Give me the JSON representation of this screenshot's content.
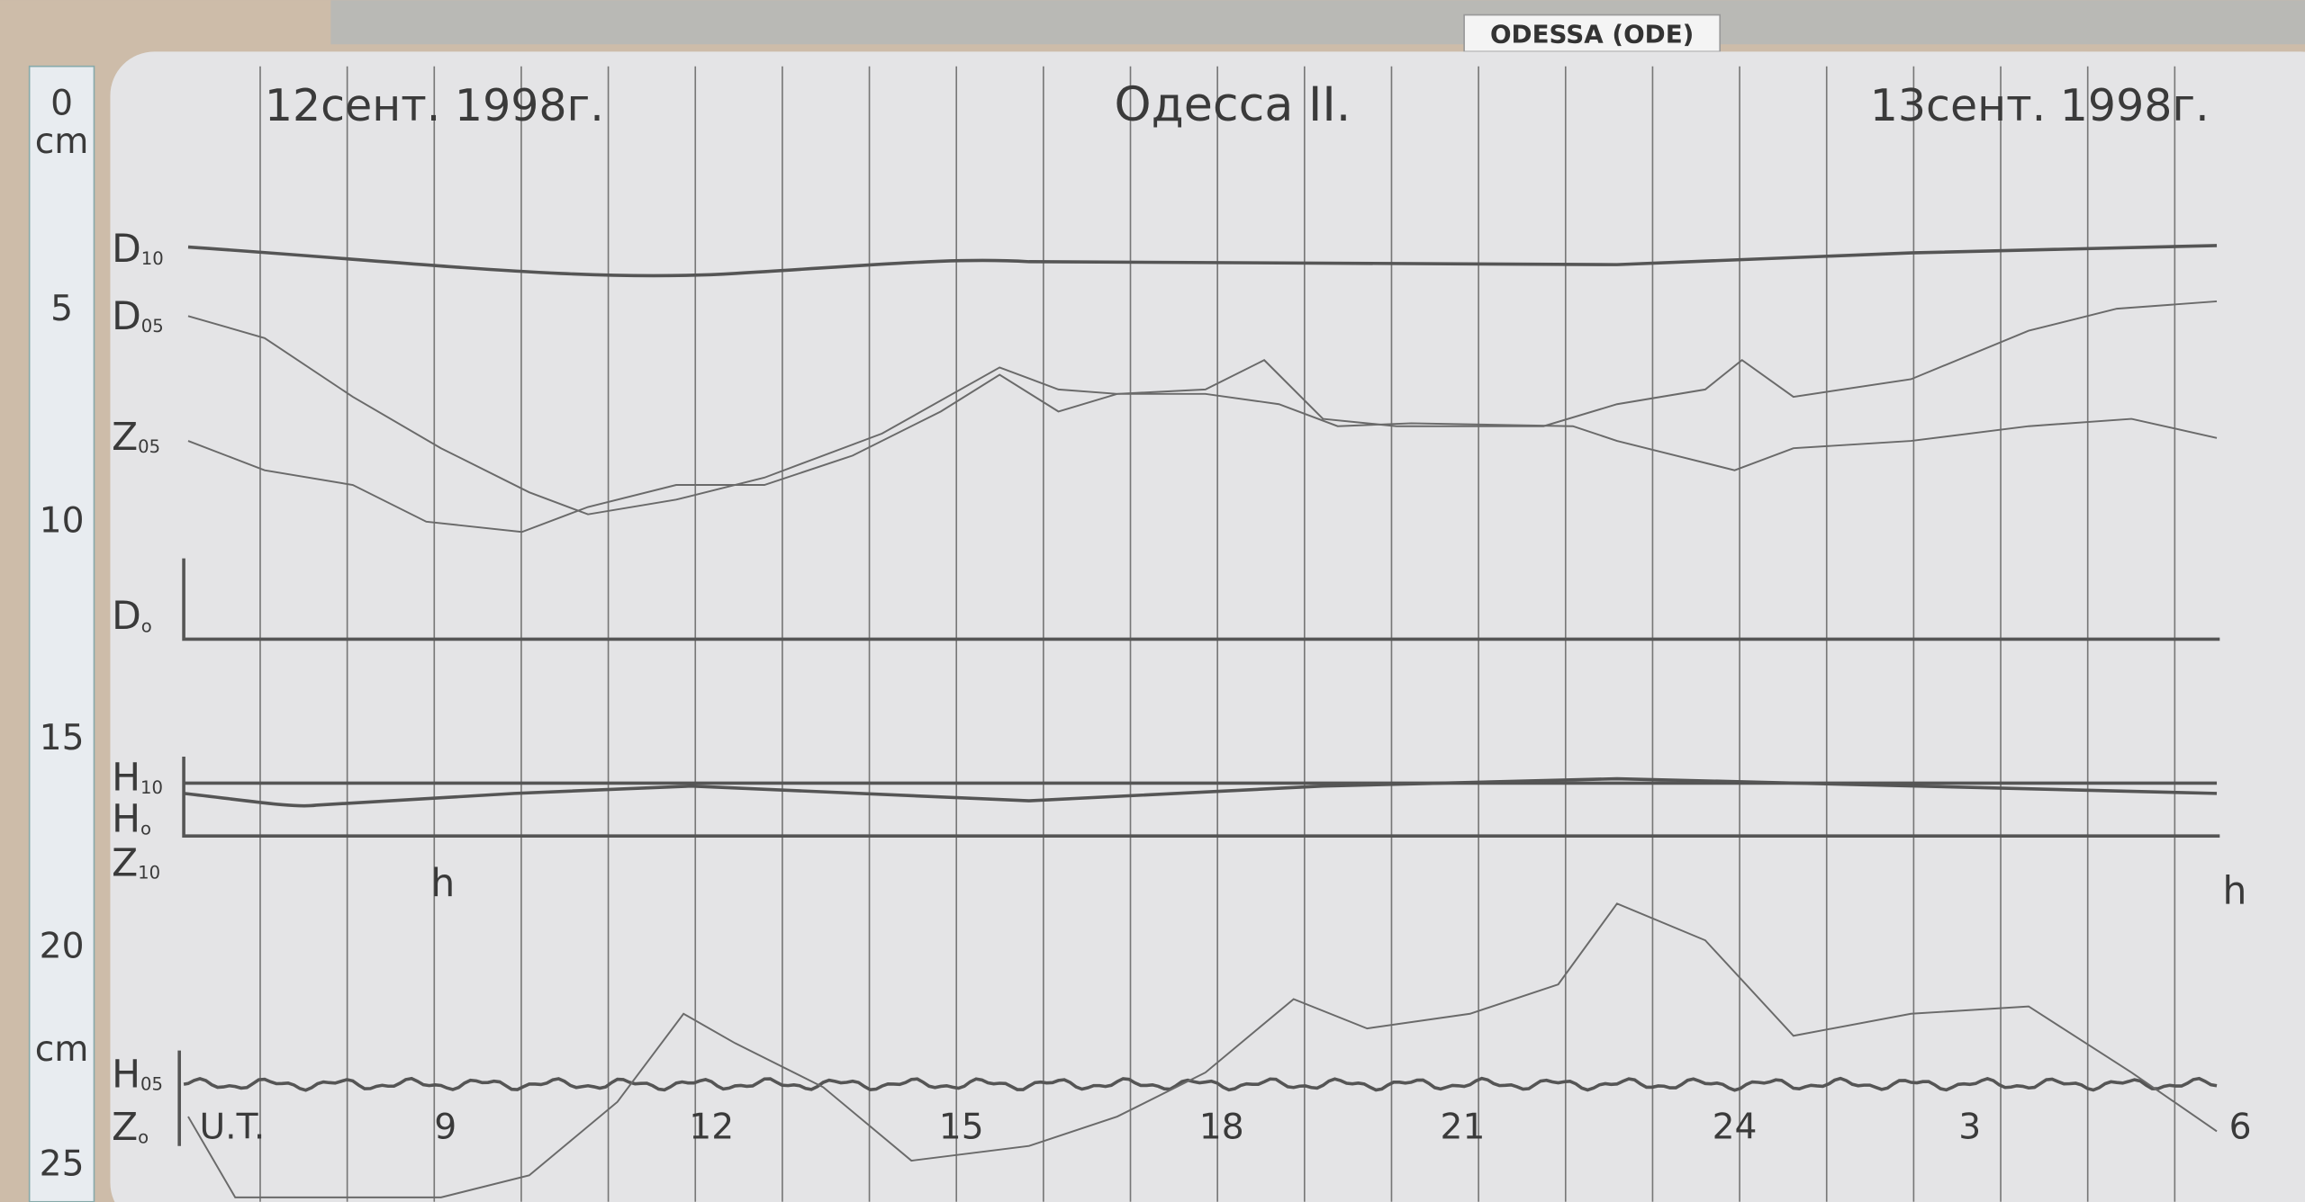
{
  "header": {
    "tag": "ODESSA (ODE)",
    "date_left": "12сент. 1998г.",
    "station": "Одесса II.",
    "date_right": "13сент. 1998г."
  },
  "ruler": {
    "marks": [
      "0",
      "cm",
      "5",
      "10",
      "15",
      "20",
      "cm",
      "25"
    ]
  },
  "trace_labels": [
    {
      "symbol": "D",
      "sub": "10"
    },
    {
      "symbol": "D",
      "sub": "05"
    },
    {
      "symbol": "Z",
      "sub": "05"
    },
    {
      "symbol": "D",
      "sub": "o"
    },
    {
      "symbol": "H",
      "sub": "10"
    },
    {
      "symbol": "H",
      "sub": "o"
    },
    {
      "symbol": "Z",
      "sub": "10"
    },
    {
      "symbol": "H",
      "sub": "05"
    },
    {
      "symbol": "Z",
      "sub": "o"
    }
  ],
  "hour_marks": [
    "h",
    "h"
  ],
  "time_axis": [
    "U.T.",
    "9",
    "12",
    "15",
    "18",
    "21",
    "24",
    "3",
    "6"
  ]
}
